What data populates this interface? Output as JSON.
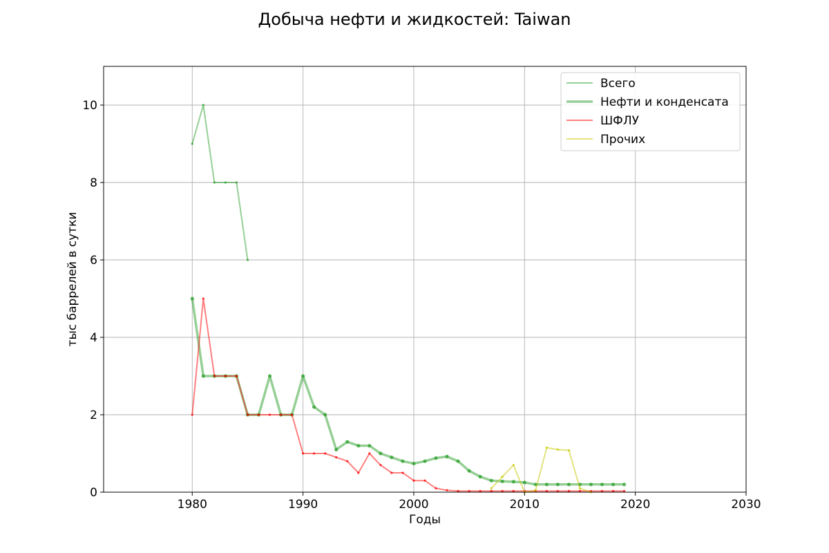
{
  "chart_data": {
    "type": "line",
    "title": "Добыча нефти и жидкостей: Taiwan",
    "xlabel": "Годы",
    "ylabel": "тыс баррелей в сутки",
    "xlim": [
      1972,
      2030
    ],
    "ylim": [
      0,
      11
    ],
    "xticks": [
      1980,
      1990,
      2000,
      2010,
      2020,
      2030
    ],
    "yticks": [
      0,
      2,
      4,
      6,
      8,
      10
    ],
    "grid": true,
    "legend_position": "top-right",
    "series": [
      {
        "name": "Всего",
        "color": "#2ca02c",
        "width": 2,
        "x": [
          1980,
          1981,
          1982,
          1983,
          1984,
          1985
        ],
        "y": [
          9,
          10,
          8,
          8,
          8,
          6
        ]
      },
      {
        "name": "Нефти и конденсата",
        "color": "#2ca02c",
        "width": 3.5,
        "x": [
          1980,
          1981,
          1982,
          1983,
          1984,
          1985,
          1986,
          1987,
          1988,
          1989,
          1990,
          1991,
          1992,
          1993,
          1994,
          1995,
          1996,
          1997,
          1998,
          1999,
          2000,
          2001,
          2002,
          2003,
          2004,
          2005,
          2006,
          2007,
          2008,
          2009,
          2010,
          2011,
          2012,
          2013,
          2014,
          2015,
          2016,
          2017,
          2018,
          2019
        ],
        "y": [
          5,
          3,
          3,
          3,
          3,
          2,
          2,
          3,
          2,
          2,
          3,
          2.2,
          2,
          1.1,
          1.3,
          1.2,
          1.2,
          1.0,
          0.9,
          0.8,
          0.74,
          0.8,
          0.88,
          0.92,
          0.8,
          0.55,
          0.4,
          0.3,
          0.28,
          0.27,
          0.25,
          0.2,
          0.2,
          0.2,
          0.2,
          0.2,
          0.2,
          0.2,
          0.2,
          0.2
        ]
      },
      {
        "name": "ШФЛУ",
        "color": "#ff0000",
        "width": 2,
        "x": [
          1980,
          1981,
          1982,
          1983,
          1984,
          1985,
          1986,
          1987,
          1988,
          1989,
          1990,
          1991,
          1992,
          1993,
          1994,
          1995,
          1996,
          1997,
          1998,
          1999,
          2000,
          2001,
          2002,
          2003,
          2004,
          2005,
          2006,
          2007,
          2008,
          2009,
          2010,
          2011,
          2012,
          2013,
          2014,
          2015,
          2016,
          2017,
          2018,
          2019
        ],
        "y": [
          2,
          5,
          3,
          3,
          3,
          2,
          2,
          2,
          2,
          2,
          1,
          1,
          1,
          0.9,
          0.8,
          0.5,
          1.0,
          0.7,
          0.5,
          0.5,
          0.3,
          0.3,
          0.1,
          0.05,
          0.03,
          0.03,
          0.03,
          0.03,
          0.03,
          0.03,
          0.03,
          0.03,
          0.03,
          0.03,
          0.03,
          0.03,
          0.03,
          0.03,
          0.03,
          0.03
        ]
      },
      {
        "name": "Прочих",
        "color": "#c8c800",
        "width": 2,
        "x": [
          2007,
          2008,
          2009,
          2010,
          2011,
          2012,
          2013,
          2014,
          2015,
          2016
        ],
        "y": [
          0.1,
          0.4,
          0.7,
          0.0,
          0.05,
          1.15,
          1.1,
          1.08,
          0.1,
          0.0
        ]
      }
    ]
  }
}
